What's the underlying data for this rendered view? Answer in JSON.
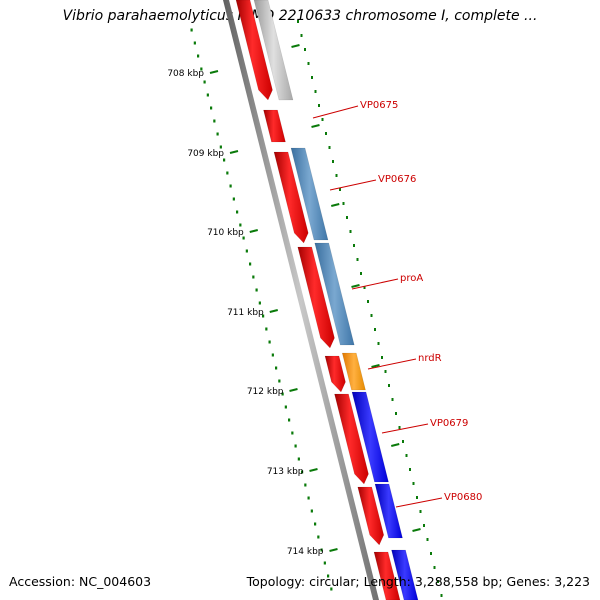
{
  "title": "Vibrio parahaemolyticus RIMD 2210633 chromosome I, complete ...",
  "footer": {
    "accession": "Accession: NC_004603",
    "summary": "Topology: circular; Length: 3,288,558 bp; Genes: 3,223"
  },
  "ruler_labels": [
    "708 kbp",
    "709 kbp",
    "710 kbp",
    "711 kbp",
    "712 kbp",
    "713 kbp",
    "714 kbp"
  ],
  "gene_labels": [
    "VP0675",
    "VP0676",
    "proA",
    "nrdR",
    "VP0679",
    "VP0680"
  ],
  "colors": {
    "red_feature": "#ff0000",
    "gray_feature": "#bdbdbd",
    "steelblue_feature": "#4f84b6",
    "orange_feature": "#ff8c00",
    "blue_feature": "#0000ff",
    "ruler_green": "#0a7a0a",
    "label_red": "#cc0000",
    "backbone": "#808080"
  }
}
